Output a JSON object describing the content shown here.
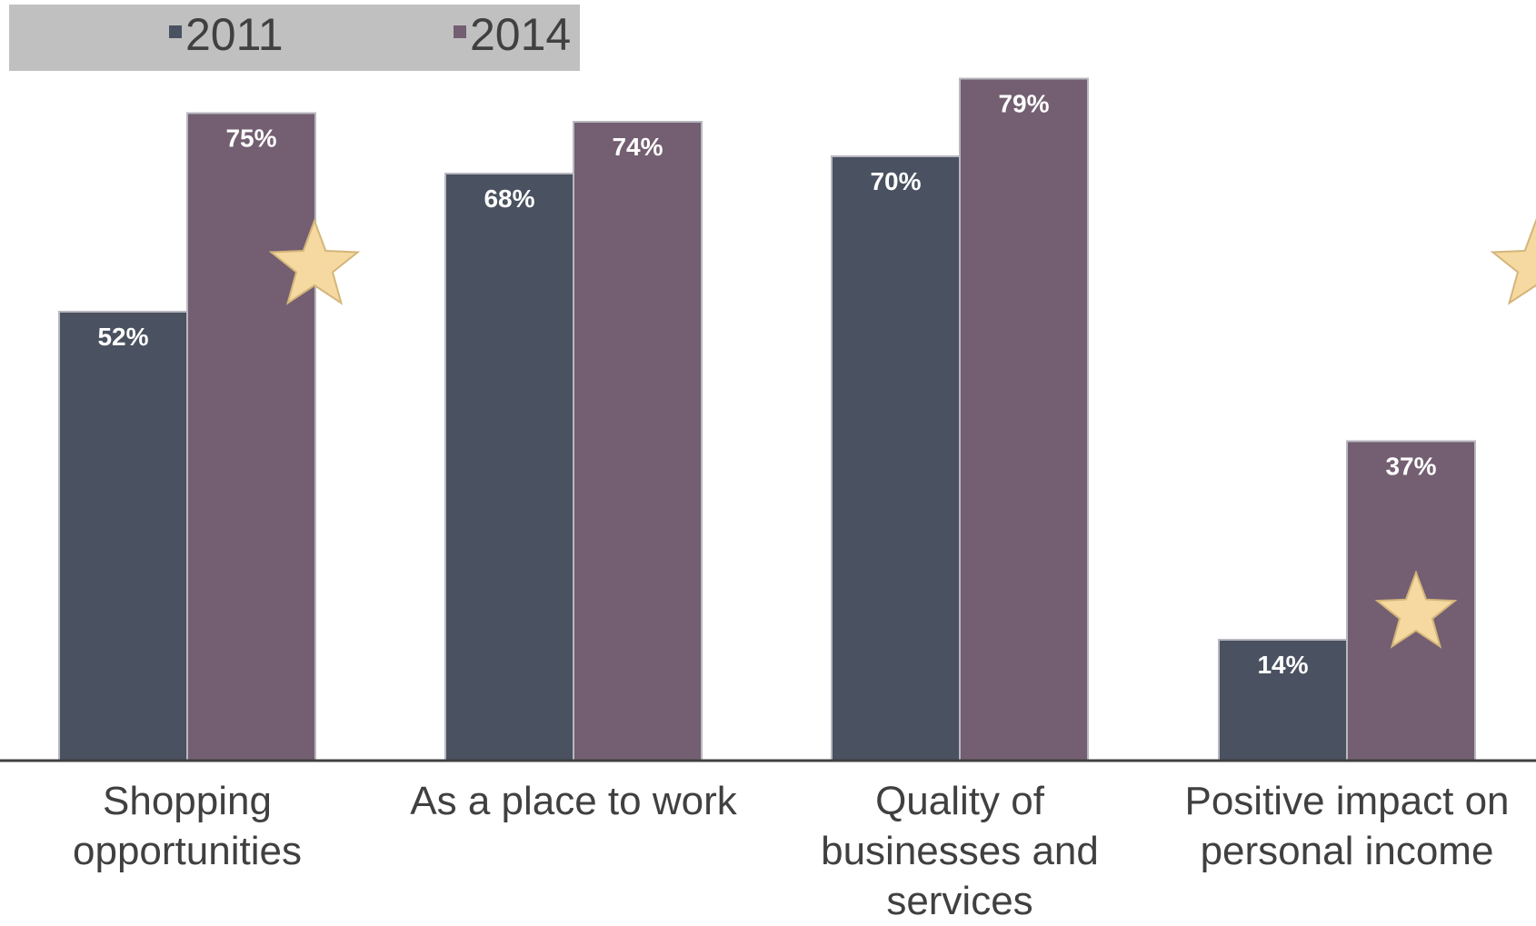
{
  "chart_data": {
    "type": "bar",
    "title": "",
    "xlabel": "",
    "ylabel": "",
    "ylim": [
      0,
      85
    ],
    "grid": false,
    "legend": {
      "placement": "top-left",
      "entries": [
        "2011",
        "2014"
      ]
    },
    "categories": [
      [
        "Shopping",
        "opportunities"
      ],
      [
        "As a place to work"
      ],
      [
        "Quality of",
        "businesses and",
        "services"
      ],
      [
        "Positive impact on",
        "personal income"
      ]
    ],
    "series": [
      {
        "name": "2011",
        "color": "#4a5160",
        "values": [
          52,
          68,
          70,
          14
        ],
        "labels": [
          "52%",
          "68%",
          "70%",
          "14%"
        ]
      },
      {
        "name": "2014",
        "color": "#735f71",
        "values": [
          75,
          74,
          79,
          37
        ],
        "labels": [
          "75%",
          "74%",
          "79%",
          "37%"
        ]
      }
    ],
    "annotations": {
      "star_icon_color": "#f5d9a0",
      "stars_on_categories": [
        0,
        3
      ]
    }
  }
}
